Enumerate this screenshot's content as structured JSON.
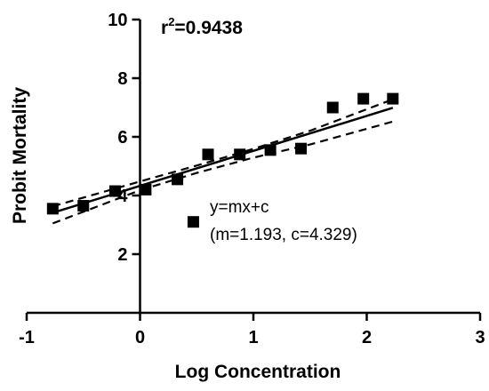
{
  "chart_data": {
    "type": "scatter",
    "xlabel": "Log Concentration",
    "ylabel": "Probit Mortality",
    "xlim": [
      -1,
      3
    ],
    "ylim": [
      0,
      10
    ],
    "x_ticks": [
      "-1",
      "0",
      "1",
      "2",
      "3"
    ],
    "y_ticks": [
      "2",
      "4",
      "6",
      "8",
      "10"
    ],
    "y_tick_values": [
      2,
      4,
      6,
      8,
      10
    ],
    "grid": false,
    "legend": "none",
    "r2": {
      "prefix": "r",
      "sup": "2",
      "value": "=0.9438"
    },
    "equation": {
      "line1": "y=mx+c",
      "line2": "(m=1.193, c=4.329)"
    },
    "legend_marker": {
      "x": 0.47,
      "y": 3.1
    },
    "fit": {
      "slope": 1.193,
      "intercept": 4.329,
      "x_range": [
        -0.77,
        2.23
      ]
    },
    "confidence_band": {
      "x": [
        -0.77,
        0.0,
        0.5,
        1.0,
        1.5,
        2.23
      ],
      "upper": [
        3.63,
        4.48,
        5.02,
        5.59,
        6.21,
        7.28
      ],
      "lower": [
        3.05,
        4.18,
        4.77,
        5.29,
        5.74,
        6.52
      ]
    },
    "points": [
      {
        "x": -0.77,
        "y": 3.55
      },
      {
        "x": -0.5,
        "y": 3.65
      },
      {
        "x": -0.22,
        "y": 4.15
      },
      {
        "x": 0.05,
        "y": 4.2
      },
      {
        "x": 0.33,
        "y": 4.55
      },
      {
        "x": 0.6,
        "y": 5.4
      },
      {
        "x": 0.88,
        "y": 5.4
      },
      {
        "x": 1.15,
        "y": 5.55
      },
      {
        "x": 1.42,
        "y": 5.6
      },
      {
        "x": 1.7,
        "y": 7.0
      },
      {
        "x": 1.97,
        "y": 7.3
      },
      {
        "x": 2.23,
        "y": 7.3
      }
    ]
  }
}
